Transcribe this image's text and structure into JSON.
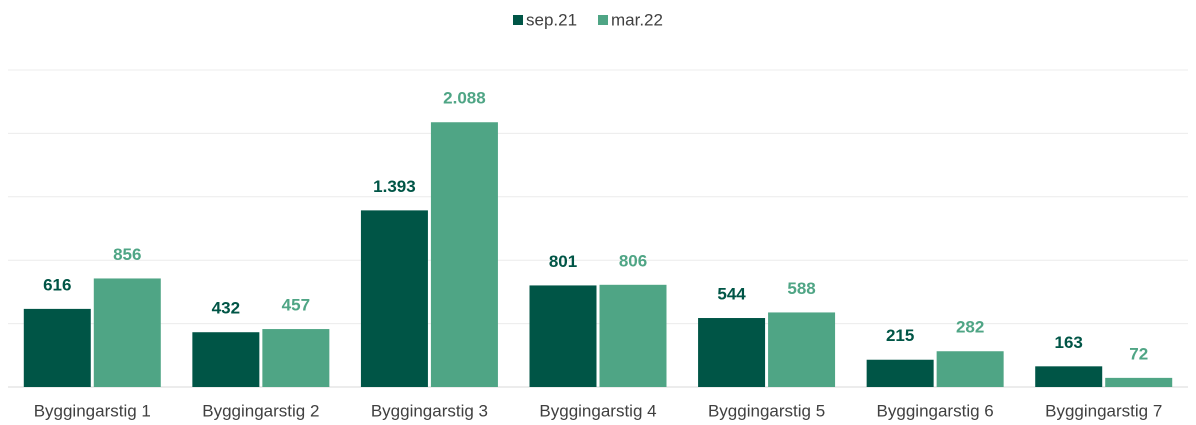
{
  "chart_data": {
    "type": "bar",
    "categories": [
      "Byggingarstig 1",
      "Byggingarstig 2",
      "Byggingarstig 3",
      "Byggingarstig 4",
      "Byggingarstig 5",
      "Byggingarstig 6",
      "Byggingarstig 7"
    ],
    "series": [
      {
        "name": "sep.21",
        "color": "#005546",
        "values": [
          616,
          432,
          1393,
          801,
          544,
          215,
          163
        ],
        "value_labels": [
          "616",
          "432",
          "1.393",
          "801",
          "544",
          "215",
          "163"
        ]
      },
      {
        "name": "mar.22",
        "color": "#4fa585",
        "values": [
          856,
          457,
          2088,
          806,
          588,
          282,
          72
        ],
        "value_labels": [
          "856",
          "457",
          "2.088",
          "806",
          "588",
          "282",
          "72"
        ]
      }
    ],
    "ylim": [
      0,
      2500
    ],
    "yticks": [
      0,
      500,
      1000,
      1500,
      2000,
      2500
    ],
    "grid": true,
    "legend": "top"
  }
}
